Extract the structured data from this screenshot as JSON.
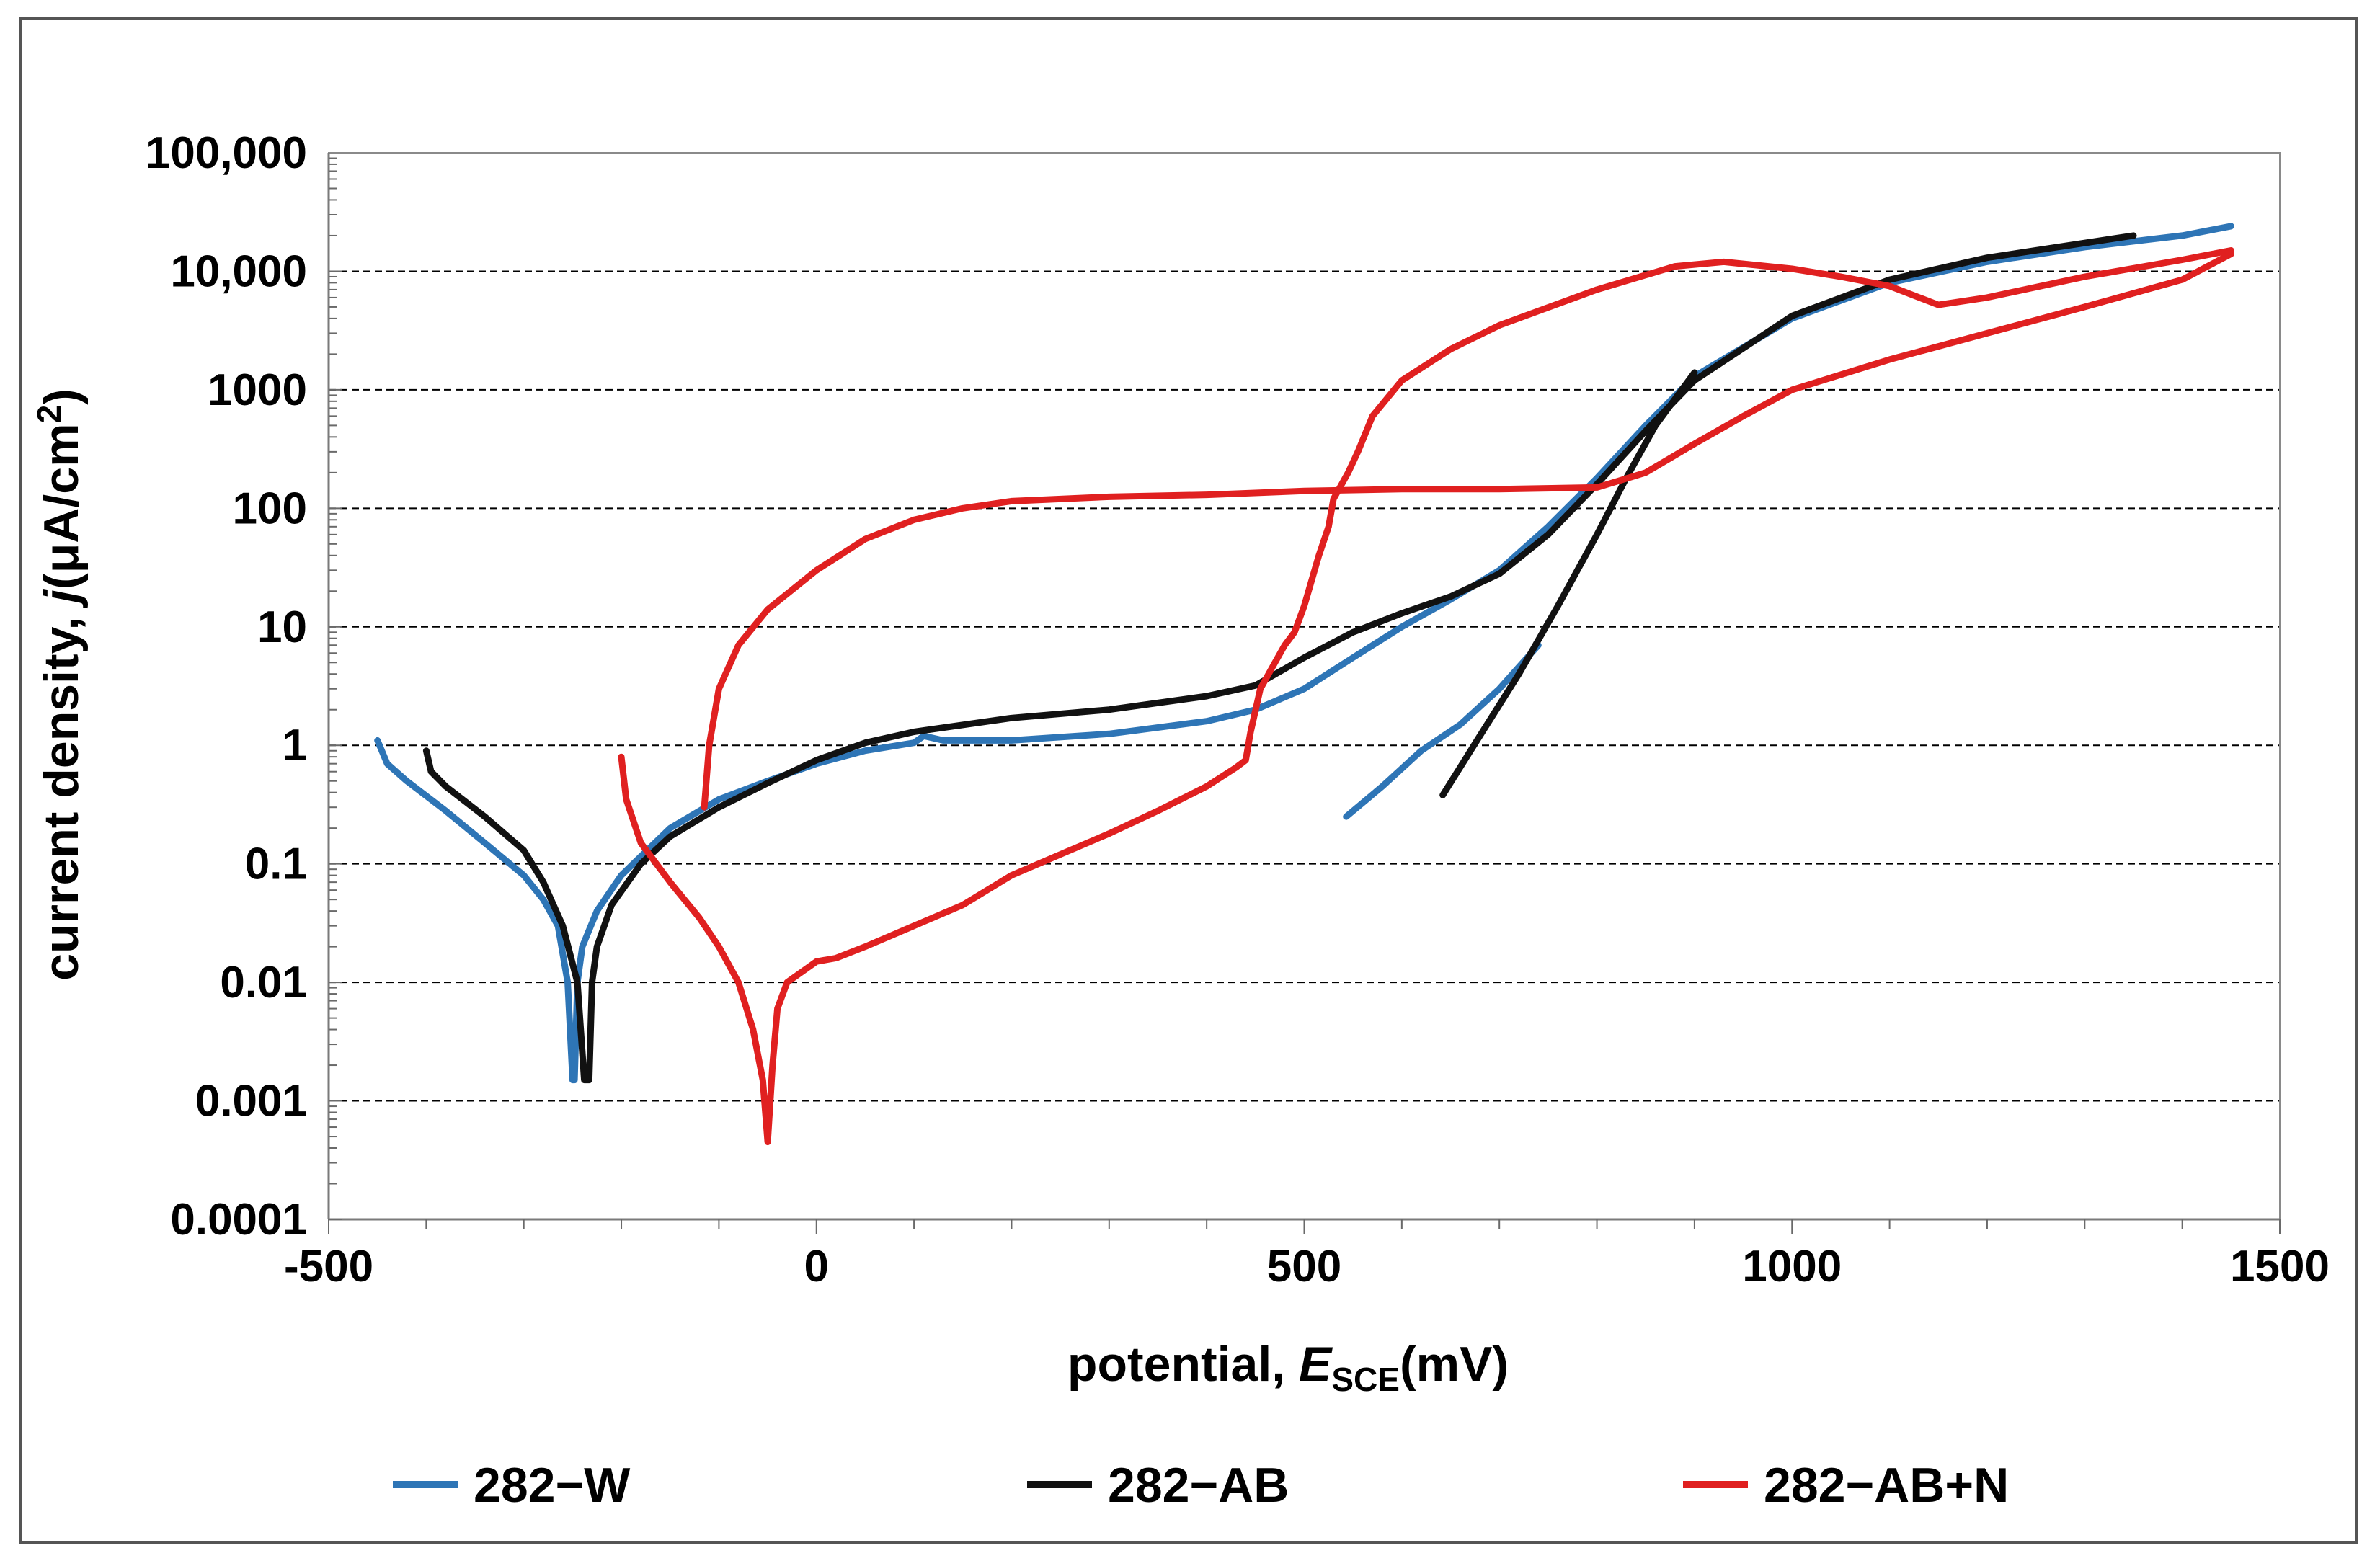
{
  "chart_data": {
    "type": "line",
    "title": "",
    "xlabel": {
      "prefix": "potential, ",
      "italic": "E",
      "subscript": "SCE",
      "suffix": "(mV)"
    },
    "ylabel": {
      "prefix": "current density, ",
      "italic": "j",
      "suffix": "(μA/cm",
      "superscript": "2",
      "close": ")"
    },
    "xlim": [
      -500,
      1500
    ],
    "ylim": [
      0.0001,
      100000
    ],
    "yscale": "log",
    "x_ticks": [
      -500,
      0,
      500,
      1000,
      1500
    ],
    "x_tick_labels": [
      "-500",
      "0",
      "500",
      "1000",
      "1500"
    ],
    "y_ticks": [
      0.0001,
      0.001,
      0.01,
      0.1,
      1,
      10,
      100,
      1000,
      10000,
      100000
    ],
    "y_tick_labels": [
      "0.0001",
      "0.001",
      "0.01",
      "0.1",
      "1",
      "10",
      "100",
      "1000",
      "10,000",
      "100,000"
    ],
    "grid": "horizontal-dashed",
    "legend_position": "bottom",
    "series": [
      {
        "name": "282−W",
        "color": "#2E75B6",
        "segments": [
          [
            [
              -450,
              1.1
            ],
            [
              -440,
              0.7
            ],
            [
              -420,
              0.5
            ],
            [
              -380,
              0.28
            ],
            [
              -340,
              0.15
            ],
            [
              -300,
              0.08
            ],
            [
              -280,
              0.05
            ],
            [
              -265,
              0.03
            ],
            [
              -255,
              0.01
            ],
            [
              -250,
              0.0015
            ],
            [
              -248,
              0.0015
            ],
            [
              -245,
              0.01
            ],
            [
              -240,
              0.02
            ],
            [
              -225,
              0.04
            ],
            [
              -200,
              0.08
            ],
            [
              -150,
              0.2
            ],
            [
              -100,
              0.35
            ],
            [
              -50,
              0.5
            ],
            [
              0,
              0.7
            ],
            [
              50,
              0.9
            ],
            [
              100,
              1.05
            ],
            [
              110,
              1.2
            ],
            [
              130,
              1.1
            ],
            [
              200,
              1.1
            ],
            [
              300,
              1.25
            ],
            [
              400,
              1.6
            ],
            [
              450,
              2.0
            ],
            [
              500,
              3.0
            ],
            [
              550,
              5.5
            ],
            [
              600,
              10
            ],
            [
              650,
              17
            ],
            [
              700,
              30
            ],
            [
              750,
              70
            ],
            [
              800,
              180
            ],
            [
              850,
              500
            ],
            [
              900,
              1300
            ],
            [
              1000,
              4000
            ],
            [
              1100,
              8000
            ],
            [
              1200,
              12000
            ],
            [
              1300,
              16000
            ],
            [
              1400,
              20000
            ],
            [
              1450,
              24000
            ]
          ],
          [
            [
              543,
              0.25
            ],
            [
              580,
              0.45
            ],
            [
              620,
              0.9
            ],
            [
              660,
              1.5
            ],
            [
              700,
              3.0
            ],
            [
              740,
              7
            ]
          ]
        ]
      },
      {
        "name": "282−AB",
        "color": "#111111",
        "segments": [
          [
            [
              -400,
              0.9
            ],
            [
              -395,
              0.6
            ],
            [
              -380,
              0.45
            ],
            [
              -340,
              0.25
            ],
            [
              -300,
              0.13
            ],
            [
              -280,
              0.07
            ],
            [
              -260,
              0.03
            ],
            [
              -245,
              0.01
            ],
            [
              -238,
              0.0015
            ],
            [
              -233,
              0.0015
            ],
            [
              -230,
              0.01
            ],
            [
              -225,
              0.02
            ],
            [
              -210,
              0.045
            ],
            [
              -180,
              0.1
            ],
            [
              -150,
              0.17
            ],
            [
              -100,
              0.3
            ],
            [
              -50,
              0.48
            ],
            [
              0,
              0.75
            ],
            [
              50,
              1.05
            ],
            [
              100,
              1.3
            ],
            [
              200,
              1.7
            ],
            [
              300,
              2.0
            ],
            [
              400,
              2.6
            ],
            [
              450,
              3.2
            ],
            [
              500,
              5.5
            ],
            [
              550,
              9
            ],
            [
              600,
              13
            ],
            [
              650,
              18
            ],
            [
              700,
              28
            ],
            [
              750,
              60
            ],
            [
              800,
              160
            ],
            [
              850,
              450
            ],
            [
              900,
              1200
            ],
            [
              1000,
              4200
            ],
            [
              1100,
              8500
            ],
            [
              1200,
              13000
            ],
            [
              1350,
              20000
            ]
          ],
          [
            [
              642,
              0.38
            ],
            [
              680,
              1.2
            ],
            [
              720,
              4
            ],
            [
              760,
              15
            ],
            [
              800,
              60
            ],
            [
              830,
              180
            ],
            [
              860,
              500
            ],
            [
              900,
              1400
            ]
          ]
        ]
      },
      {
        "name": "282−AB+N",
        "color": "#E02020",
        "segments": [
          [
            [
              -200,
              0.8
            ],
            [
              -195,
              0.35
            ],
            [
              -180,
              0.15
            ],
            [
              -150,
              0.07
            ],
            [
              -120,
              0.035
            ],
            [
              -100,
              0.02
            ],
            [
              -80,
              0.01
            ],
            [
              -65,
              0.004
            ],
            [
              -55,
              0.0015
            ],
            [
              -50,
              0.00045
            ],
            [
              -45,
              0.002
            ],
            [
              -40,
              0.006
            ],
            [
              -30,
              0.01
            ],
            [
              0,
              0.015
            ],
            [
              20,
              0.016
            ],
            [
              50,
              0.02
            ],
            [
              100,
              0.03
            ],
            [
              150,
              0.045
            ],
            [
              200,
              0.08
            ],
            [
              250,
              0.12
            ],
            [
              300,
              0.18
            ],
            [
              350,
              0.28
            ],
            [
              400,
              0.45
            ],
            [
              430,
              0.65
            ],
            [
              440,
              0.75
            ],
            [
              445,
              1.3
            ],
            [
              455,
              3
            ],
            [
              470,
              5
            ],
            [
              480,
              7
            ],
            [
              490,
              9
            ],
            [
              500,
              15
            ],
            [
              515,
              40
            ],
            [
              525,
              70
            ],
            [
              530,
              120
            ],
            [
              545,
              200
            ],
            [
              555,
              300
            ],
            [
              570,
              600
            ],
            [
              600,
              1200
            ],
            [
              650,
              2200
            ],
            [
              700,
              3500
            ],
            [
              800,
              7000
            ],
            [
              880,
              11000
            ],
            [
              930,
              12000
            ],
            [
              1000,
              10500
            ],
            [
              1050,
              9000
            ],
            [
              1100,
              7500
            ],
            [
              1150,
              5200
            ],
            [
              1200,
              6000
            ],
            [
              1300,
              9000
            ],
            [
              1400,
              12500
            ],
            [
              1450,
              15000
            ]
          ],
          [
            [
              -115,
              0.3
            ],
            [
              -110,
              1.0
            ],
            [
              -100,
              3
            ],
            [
              -80,
              7
            ],
            [
              -50,
              14
            ],
            [
              0,
              30
            ],
            [
              50,
              55
            ],
            [
              100,
              80
            ],
            [
              150,
              100
            ],
            [
              200,
              115
            ],
            [
              300,
              125
            ],
            [
              400,
              130
            ],
            [
              500,
              140
            ],
            [
              600,
              145
            ],
            [
              700,
              145
            ],
            [
              800,
              150
            ],
            [
              850,
              200
            ],
            [
              900,
              350
            ],
            [
              950,
              600
            ],
            [
              1000,
              1000
            ],
            [
              1100,
              1800
            ],
            [
              1200,
              3000
            ],
            [
              1300,
              5000
            ],
            [
              1400,
              8500
            ],
            [
              1450,
              14000
            ]
          ]
        ]
      }
    ]
  }
}
